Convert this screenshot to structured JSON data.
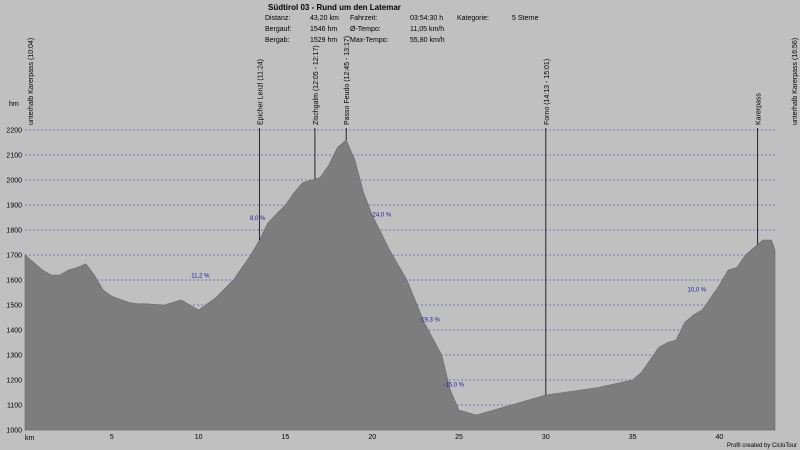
{
  "header": {
    "title": "Südtirol 03 - Rund um den Latemar",
    "stats": {
      "distance_label": "Distanz:",
      "distance_value": "43,20 km",
      "ascent_label": "Bergauf:",
      "ascent_value": "1546 hm",
      "descent_label": "Bergab:",
      "descent_value": "1529 hm",
      "time_label": "Fahrzeit:",
      "time_value": "03:54:30 h",
      "avg_label": "Ø-Tempo:",
      "avg_value": "11,05 km/h",
      "max_label": "Max-Tempo:",
      "max_value": "55,80 km/h",
      "category_label": "Kategorie:",
      "category_value": "5 Sterne"
    }
  },
  "footer": "Profil created by CicloTour",
  "chart_data": {
    "type": "area",
    "title": "Südtirol 03 - Rund um den Latemar",
    "xlabel": "km",
    "ylabel": "hm",
    "xlim": [
      0,
      43.2
    ],
    "ylim": [
      1000,
      2200
    ],
    "x_ticks": [
      5,
      10,
      15,
      20,
      25,
      30,
      35,
      40
    ],
    "y_ticks": [
      1000,
      1100,
      1200,
      1300,
      1400,
      1500,
      1600,
      1700,
      1800,
      1900,
      2000,
      2100,
      2200
    ],
    "grid": true,
    "colors": {
      "fill": "#7d7d7d",
      "grid": "#2a2aa8",
      "background": "#c0c0c0"
    },
    "series": [
      {
        "x": [
          0,
          0.5,
          1,
          1.5,
          2,
          2.5,
          3,
          3.5,
          4,
          4.5,
          5,
          6,
          6.5,
          7,
          8,
          9,
          9.5,
          10,
          11,
          12,
          13,
          13.5,
          14,
          15,
          15.5,
          16,
          16.5,
          17,
          17.5,
          18,
          18.5,
          19,
          19.5,
          20,
          21,
          22,
          23,
          24,
          24.5,
          25,
          26,
          27,
          28,
          29,
          30,
          31,
          32,
          33,
          34,
          35,
          35.5,
          36,
          36.5,
          37,
          37.5,
          38,
          38.5,
          39,
          39.5,
          40,
          40.5,
          41,
          41.5,
          42,
          42.5,
          43,
          43.2
        ],
        "y": [
          1700,
          1670,
          1640,
          1620,
          1620,
          1640,
          1650,
          1665,
          1620,
          1560,
          1535,
          1510,
          1505,
          1505,
          1500,
          1520,
          1500,
          1480,
          1530,
          1600,
          1700,
          1760,
          1830,
          1900,
          1950,
          1990,
          2000,
          2010,
          2060,
          2130,
          2160,
          2080,
          1950,
          1860,
          1720,
          1600,
          1430,
          1300,
          1160,
          1080,
          1060,
          1080,
          1100,
          1120,
          1140,
          1150,
          1160,
          1170,
          1185,
          1200,
          1230,
          1280,
          1330,
          1350,
          1360,
          1430,
          1460,
          1480,
          1530,
          1580,
          1640,
          1650,
          1700,
          1730,
          1760,
          1760,
          1720
        ]
      }
    ],
    "waypoints": [
      {
        "km": 0,
        "label": "unterhalb Karerpass (10:04)"
      },
      {
        "km": 13.5,
        "label": "Epicher Lenzl (11:24)"
      },
      {
        "km": 16.7,
        "label": "Zischgalm (12:05 - 12:17)"
      },
      {
        "km": 18.5,
        "label": "Passo Feudo (12:45 - 13:17)"
      },
      {
        "km": 30,
        "label": "Forno (14:13 - 15:01)"
      },
      {
        "km": 42.2,
        "label": "Karerpass"
      },
      {
        "km": 43.2,
        "label": "unterhalb Karerpass (16:56)"
      }
    ],
    "grades": [
      {
        "km": 10.1,
        "hm": 1610,
        "label": "11,2 %"
      },
      {
        "km": 13.4,
        "hm": 1840,
        "label": "8,0 %"
      },
      {
        "km": 20.5,
        "hm": 1855,
        "label": "-24,0 %"
      },
      {
        "km": 23.3,
        "hm": 1435,
        "label": "-19,3 %"
      },
      {
        "km": 24.7,
        "hm": 1175,
        "label": "-15,0 %"
      },
      {
        "km": 38.7,
        "hm": 1555,
        "label": "10,0 %"
      }
    ]
  }
}
